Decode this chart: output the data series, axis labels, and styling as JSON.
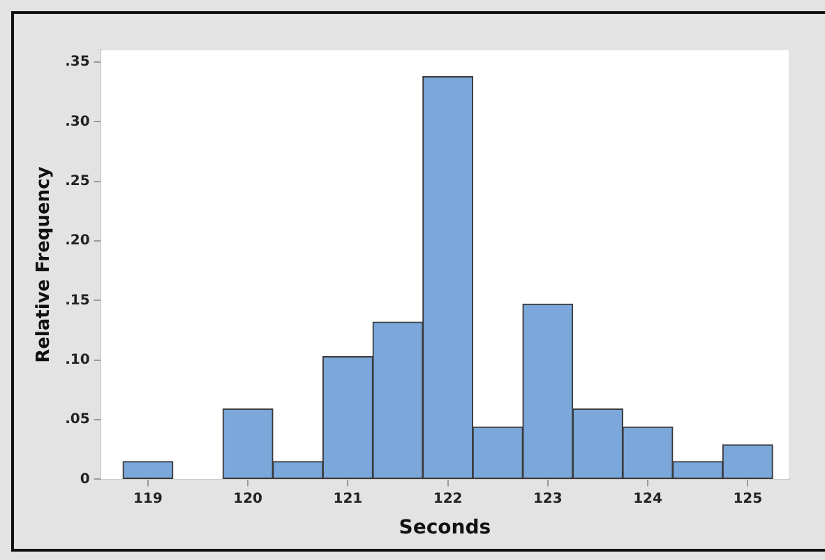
{
  "chart_data": {
    "type": "histogram",
    "xlabel": "Seconds",
    "ylabel": "Relative Frequency",
    "bins": [
      118.75,
      119.25,
      119.75,
      120.25,
      120.75,
      121.25,
      121.75,
      122.25,
      122.75,
      123.25,
      123.75,
      124.25,
      124.75,
      125.25
    ],
    "values": [
      0.015,
      0,
      0.059,
      0.015,
      0.103,
      0.132,
      0.338,
      0.044,
      0.147,
      0.059,
      0.044,
      0.015,
      0.029
    ],
    "color": "#7ba7da",
    "xlim": [
      118.53,
      125.41
    ],
    "xticks": [
      119,
      120,
      121,
      122,
      123,
      124,
      125
    ],
    "ylim": [
      0,
      0.36
    ],
    "yticks": [
      0,
      {
        "value": 0.05,
        "label": ".05"
      },
      {
        "value": 0.1,
        "label": ".10"
      },
      {
        "value": 0.15,
        "label": ".15"
      },
      {
        "value": 0.2,
        "label": ".20"
      },
      {
        "value": 0.25,
        "label": ".25"
      },
      {
        "value": 0.3,
        "label": ".30"
      },
      {
        "value": 0.35,
        "label": ".35"
      }
    ],
    "legend": false
  }
}
